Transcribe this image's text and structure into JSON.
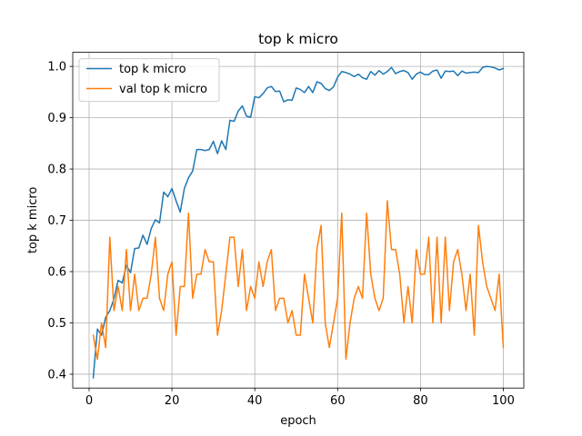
{
  "chart_data": {
    "type": "line",
    "title": "top k micro",
    "xlabel": "epoch",
    "ylabel": "top k micro",
    "xlim": [
      -3.95,
      104.95
    ],
    "ylim": [
      0.373,
      1.0275
    ],
    "xticks": [
      "0",
      "20",
      "40",
      "60",
      "80",
      "100"
    ],
    "yticks": [
      "0.4",
      "0.5",
      "0.6",
      "0.7",
      "0.8",
      "0.9",
      "1.0"
    ],
    "grid": true,
    "legend_position": "upper-left",
    "series": [
      {
        "name": "top k micro",
        "color": "#1f77b4",
        "x": [
          1,
          2,
          3,
          4,
          5,
          6,
          7,
          8,
          9,
          10,
          11,
          12,
          13,
          14,
          15,
          16,
          17,
          18,
          19,
          20,
          21,
          22,
          23,
          24,
          25,
          26,
          27,
          28,
          29,
          30,
          31,
          32,
          33,
          34,
          35,
          36,
          37,
          38,
          39,
          40,
          41,
          42,
          43,
          44,
          45,
          46,
          47,
          48,
          49,
          50,
          51,
          52,
          53,
          54,
          55,
          56,
          57,
          58,
          59,
          60,
          61,
          62,
          63,
          64,
          65,
          66,
          67,
          68,
          69,
          70,
          71,
          72,
          73,
          74,
          75,
          76,
          77,
          78,
          79,
          80,
          81,
          82,
          83,
          84,
          85,
          86,
          87,
          88,
          89,
          90,
          91,
          92,
          93,
          94,
          95,
          96,
          97,
          98,
          99,
          100
        ],
        "values": [
          0.393,
          0.488,
          0.476,
          0.511,
          0.524,
          0.547,
          0.583,
          0.578,
          0.612,
          0.598,
          0.645,
          0.646,
          0.671,
          0.653,
          0.684,
          0.701,
          0.695,
          0.755,
          0.746,
          0.762,
          0.738,
          0.716,
          0.762,
          0.783,
          0.796,
          0.838,
          0.838,
          0.836,
          0.838,
          0.854,
          0.83,
          0.855,
          0.838,
          0.895,
          0.893,
          0.913,
          0.923,
          0.903,
          0.901,
          0.941,
          0.939,
          0.947,
          0.958,
          0.961,
          0.951,
          0.952,
          0.931,
          0.935,
          0.934,
          0.958,
          0.955,
          0.949,
          0.961,
          0.949,
          0.97,
          0.967,
          0.957,
          0.953,
          0.96,
          0.979,
          0.99,
          0.988,
          0.985,
          0.98,
          0.985,
          0.978,
          0.975,
          0.99,
          0.983,
          0.992,
          0.985,
          0.99,
          0.998,
          0.986,
          0.99,
          0.992,
          0.988,
          0.975,
          0.985,
          0.989,
          0.984,
          0.984,
          0.991,
          0.993,
          0.977,
          0.991,
          0.99,
          0.991,
          0.982,
          0.991,
          0.987,
          0.988,
          0.989,
          0.988,
          0.998,
          1.0,
          0.999,
          0.997,
          0.993,
          0.996
        ]
      },
      {
        "name": "val top k micro",
        "color": "#ff7f0e",
        "x": [
          1,
          2,
          3,
          4,
          5,
          6,
          7,
          8,
          9,
          10,
          11,
          12,
          13,
          14,
          15,
          16,
          17,
          18,
          19,
          20,
          21,
          22,
          23,
          24,
          25,
          26,
          27,
          28,
          29,
          30,
          31,
          32,
          33,
          34,
          35,
          36,
          37,
          38,
          39,
          40,
          41,
          42,
          43,
          44,
          45,
          46,
          47,
          48,
          49,
          50,
          51,
          52,
          53,
          54,
          55,
          56,
          57,
          58,
          59,
          60,
          61,
          62,
          63,
          64,
          65,
          66,
          67,
          68,
          69,
          70,
          71,
          72,
          73,
          74,
          75,
          76,
          77,
          78,
          79,
          80,
          81,
          82,
          83,
          84,
          85,
          86,
          87,
          88,
          89,
          90,
          91,
          92,
          93,
          94,
          95,
          96,
          97,
          98,
          99,
          100
        ],
        "values": [
          0.476,
          0.429,
          0.5,
          0.452,
          0.667,
          0.524,
          0.571,
          0.524,
          0.643,
          0.524,
          0.595,
          0.524,
          0.548,
          0.548,
          0.595,
          0.667,
          0.548,
          0.524,
          0.595,
          0.619,
          0.476,
          0.571,
          0.571,
          0.714,
          0.548,
          0.595,
          0.595,
          0.643,
          0.619,
          0.619,
          0.476,
          0.524,
          0.595,
          0.667,
          0.667,
          0.571,
          0.643,
          0.524,
          0.571,
          0.548,
          0.619,
          0.571,
          0.619,
          0.643,
          0.524,
          0.548,
          0.548,
          0.5,
          0.524,
          0.476,
          0.476,
          0.595,
          0.548,
          0.5,
          0.643,
          0.69,
          0.5,
          0.452,
          0.5,
          0.548,
          0.714,
          0.429,
          0.5,
          0.548,
          0.571,
          0.548,
          0.714,
          0.595,
          0.548,
          0.524,
          0.548,
          0.738,
          0.643,
          0.643,
          0.595,
          0.5,
          0.571,
          0.5,
          0.643,
          0.595,
          0.595,
          0.667,
          0.5,
          0.667,
          0.5,
          0.667,
          0.524,
          0.619,
          0.643,
          0.595,
          0.524,
          0.595,
          0.476,
          0.69,
          0.619,
          0.571,
          0.548,
          0.524,
          0.595,
          0.452
        ]
      }
    ]
  }
}
